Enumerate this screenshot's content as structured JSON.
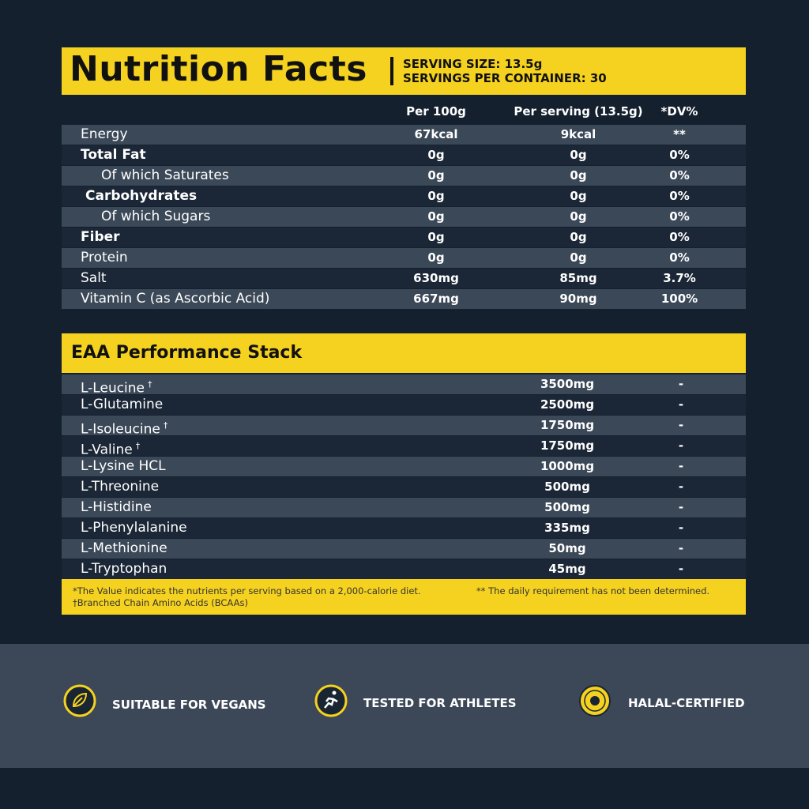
{
  "header": {
    "title": "Nutrition Facts",
    "serving_size": "SERVING SIZE: 13.5g",
    "servings": "SERVINGS PER CONTAINER: 30"
  },
  "table": {
    "columns": [
      "Per 100g",
      "Per serving (13.5g)",
      "*DV%"
    ],
    "rows": [
      {
        "name": "Energy",
        "per100": "67kcal",
        "serving": "9kcal",
        "dv": "**"
      },
      {
        "name": "Total Fat",
        "per100": "0g",
        "serving": "0g",
        "dv": "0%"
      },
      {
        "name": "Of which Saturates",
        "per100": "0g",
        "serving": "0g",
        "dv": "0%"
      },
      {
        "name": "Carbohydrates",
        "per100": "0g",
        "serving": "0g",
        "dv": "0%"
      },
      {
        "name": "Of which Sugars",
        "per100": "0g",
        "serving": "0g",
        "dv": "0%"
      },
      {
        "name": "Fiber",
        "per100": "0g",
        "serving": "0g",
        "dv": "0%"
      },
      {
        "name": "Protein",
        "per100": "0g",
        "serving": "0g",
        "dv": "0%"
      },
      {
        "name": "Salt",
        "per100": "630mg",
        "serving": "85mg",
        "dv": "3.7%"
      },
      {
        "name": "Vitamin C (as Ascorbic Acid)",
        "per100": "667mg",
        "serving": "90mg",
        "dv": "100%"
      }
    ]
  },
  "eaa": {
    "title": "EAA Performance Stack",
    "rows": [
      {
        "name": "L-Leucine",
        "mark": "†",
        "amount": "3500mg",
        "dv": "-"
      },
      {
        "name": "L-Glutamine",
        "amount": "2500mg",
        "dv": "-"
      },
      {
        "name": "L-Isoleucine",
        "mark": "†",
        "amount": "1750mg",
        "dv": "-"
      },
      {
        "name": "L-Valine",
        "mark": "†",
        "amount": "1750mg",
        "dv": "-"
      },
      {
        "name": "L-Lysine HCL",
        "amount": "1000mg",
        "dv": "-"
      },
      {
        "name": "L-Threonine",
        "amount": "500mg",
        "dv": "-"
      },
      {
        "name": "L-Histidine",
        "amount": "500mg",
        "dv": "-"
      },
      {
        "name": "L-Phenylalanine",
        "amount": "335mg",
        "dv": "-"
      },
      {
        "name": "L-Methionine",
        "amount": "50mg",
        "dv": "-"
      },
      {
        "name": "L-Tryptophan",
        "amount": "45mg",
        "dv": "-"
      }
    ]
  },
  "footnotes": [
    "*The Value indicates the nutrients per serving based on a 2,000-calorie diet.",
    "** The daily requirement has not been determined.",
    "†Branched Chain Amino Acids (BCAAs)"
  ],
  "badges": [
    "SUITABLE FOR VEGANS",
    "TESTED FOR ATHLETES",
    "HALAL-CERTIFIED"
  ]
}
